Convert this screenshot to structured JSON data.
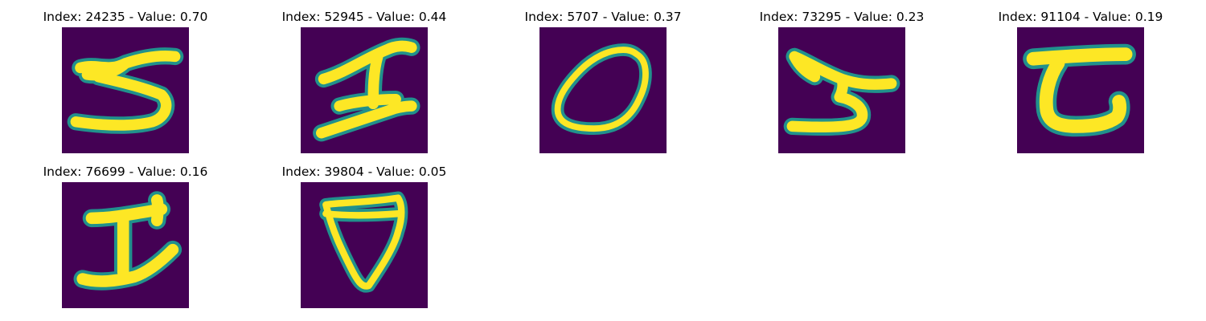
{
  "panels": [
    {
      "index": "24235",
      "value": "0.70",
      "title": "Index: 24235 - Value: 0.70",
      "glyph": "5-like stroke"
    },
    {
      "index": "52945",
      "value": "0.44",
      "title": "Index: 52945 - Value: 0.44",
      "glyph": "I-like stroke"
    },
    {
      "index": "5707",
      "value": "0.37",
      "title": "Index: 5707 - Value: 0.37",
      "glyph": "0-like ring"
    },
    {
      "index": "73295",
      "value": "0.23",
      "title": "Index: 73295 - Value: 0.23",
      "glyph": "5-like stroke"
    },
    {
      "index": "91104",
      "value": "0.19",
      "title": "Index: 91104 - Value: 0.19",
      "glyph": "C-like stroke"
    },
    {
      "index": "76699",
      "value": "0.16",
      "title": "Index: 76699 - Value: 0.16",
      "glyph": "I-like stroke"
    },
    {
      "index": "39804",
      "value": "0.05",
      "title": "Index: 39804 - Value: 0.05",
      "glyph": "shield-like ring"
    }
  ],
  "colors": {
    "background": "#440154",
    "stroke_core": "#fde725",
    "stroke_edge": "#21918c",
    "stroke_mid": "#5ec962"
  }
}
